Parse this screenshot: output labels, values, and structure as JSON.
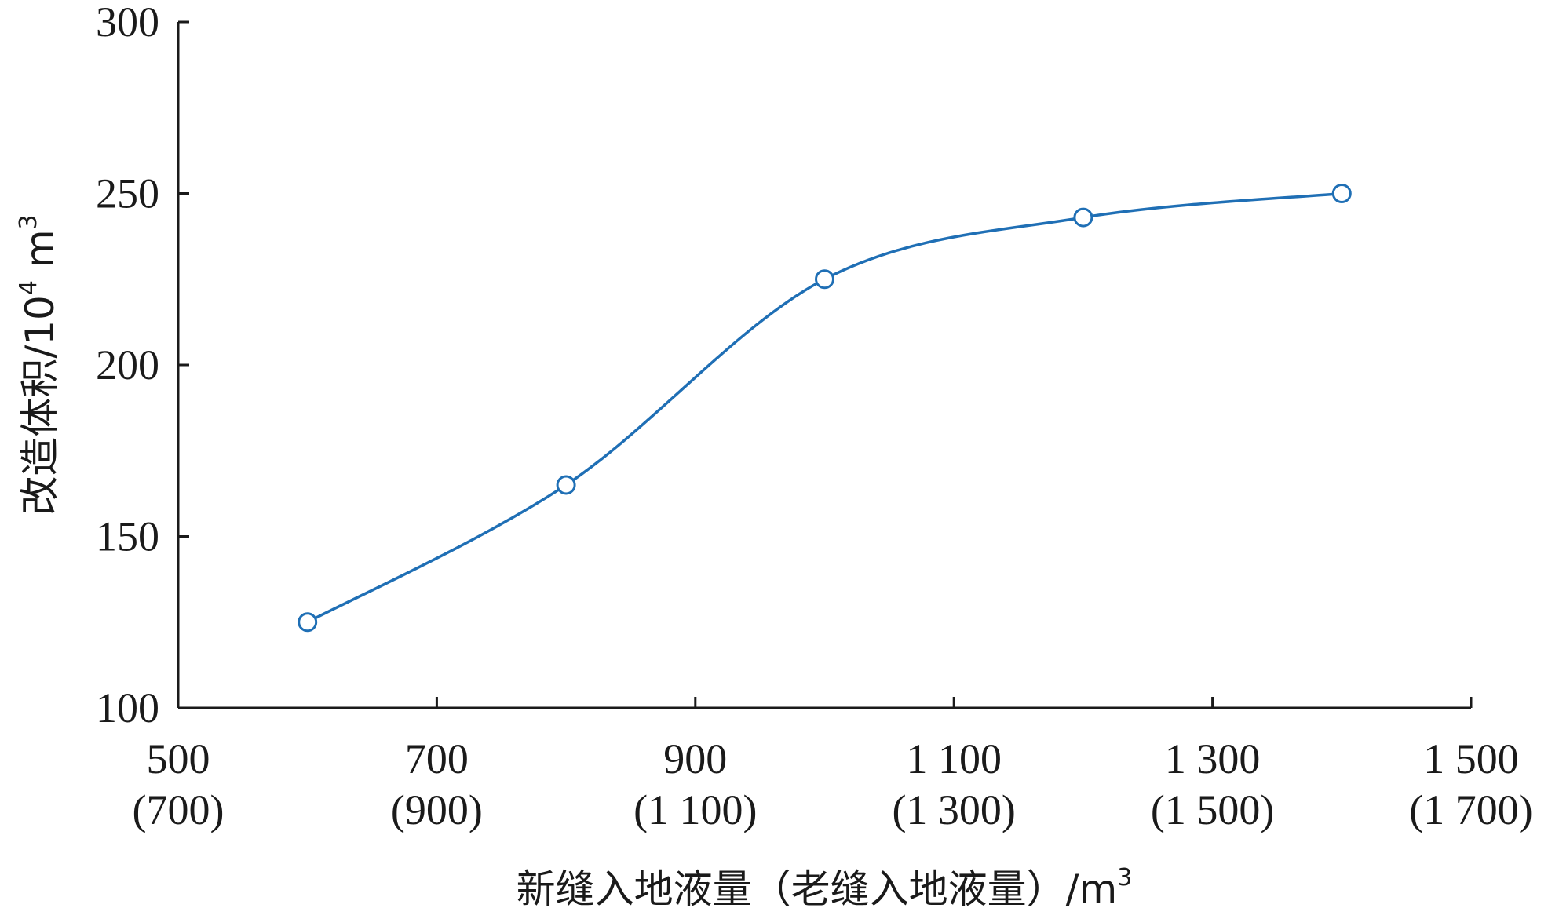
{
  "chart_data": {
    "type": "line",
    "x": [
      600,
      800,
      1000,
      1200,
      1400
    ],
    "series": [
      {
        "values": [
          125,
          165,
          225,
          243,
          250
        ]
      }
    ],
    "x_ticks": [
      500,
      700,
      900,
      1100,
      1300,
      1500
    ],
    "x_tick_labels": [
      "500",
      "700",
      "900",
      "1 100",
      "1 300",
      "1 500"
    ],
    "x_tick_labels_secondary": [
      "(700)",
      "(900)",
      "(1 100)",
      "(1 300)",
      "(1 500)",
      "(1 700)"
    ],
    "y_ticks": [
      100,
      150,
      200,
      250,
      300
    ],
    "y_tick_labels": [
      "100",
      "150",
      "200",
      "250",
      "300"
    ],
    "xlim": [
      500,
      1500
    ],
    "ylim": [
      100,
      300
    ],
    "xlabel": "新缝入地液量（老缝入地液量）/m",
    "xlabel_sup": "3",
    "ylabel": "改造体积/10",
    "ylabel_sup": "4",
    "ylabel_unit": " m",
    "ylabel_unit_sup": "3",
    "grid": false,
    "marker": "open-circle",
    "line_color": "#1f6fb5"
  }
}
